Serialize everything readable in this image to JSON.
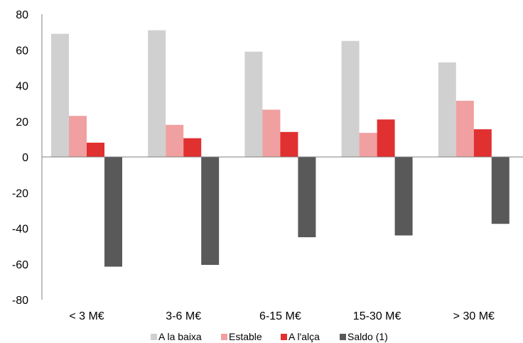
{
  "chart_data": {
    "type": "bar",
    "categories": [
      "< 3 M€",
      "3-6 M€",
      "6-15 M€",
      "15-30 M€",
      "> 30 M€"
    ],
    "series": [
      {
        "name": "A la baixa",
        "color": "#d0d0d0",
        "values": [
          69,
          71,
          59,
          65,
          53
        ]
      },
      {
        "name": "Estable",
        "color": "#f0a0a0",
        "values": [
          23,
          18,
          26.5,
          13.5,
          31.5
        ]
      },
      {
        "name": "A l'alça",
        "color": "#e03030",
        "values": [
          8,
          10.5,
          14,
          21,
          15.5
        ]
      },
      {
        "name": "Saldo (1)",
        "color": "#595959",
        "values": [
          -61.5,
          -60.5,
          -45,
          -44,
          -37.5
        ]
      }
    ],
    "ylim": [
      -80,
      80
    ],
    "yticks": [
      80,
      60,
      40,
      20,
      0,
      -20,
      -40,
      -60,
      -80
    ],
    "ytick_labels": [
      "80",
      "60",
      "40",
      "20",
      "0",
      "-20",
      "-40",
      "-60",
      "-80"
    ],
    "grid": false,
    "legend_position": "bottom"
  }
}
